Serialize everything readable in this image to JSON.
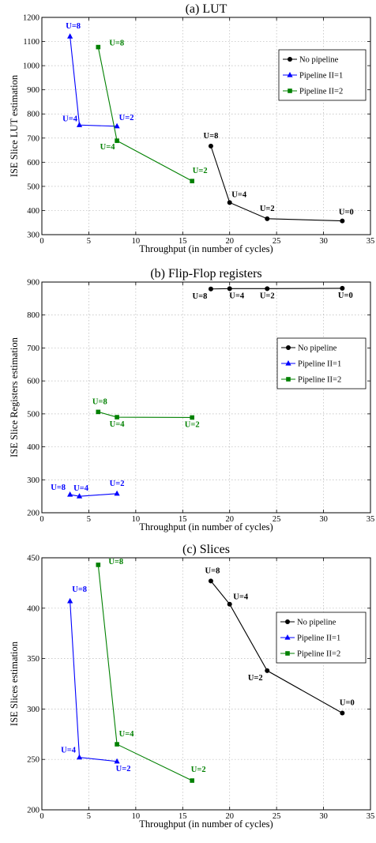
{
  "chart_data": [
    {
      "type": "line",
      "title": "(a) LUT",
      "xlabel": "Throughput (in number of cycles)",
      "ylabel": "ISE Slice LUT estimation",
      "xlim": [
        0,
        35
      ],
      "ylim": [
        300,
        1200
      ],
      "xticks": [
        0,
        5,
        10,
        15,
        20,
        25,
        30,
        35
      ],
      "yticks": [
        300,
        400,
        500,
        600,
        700,
        800,
        900,
        1000,
        1100,
        1200
      ],
      "grid": true,
      "legend_position": "top-right",
      "series": [
        {
          "name": "No pipeline",
          "color": "#000000",
          "marker": "circle",
          "x": [
            18,
            20,
            24,
            32
          ],
          "y": [
            667,
            433,
            366,
            357
          ],
          "labels": [
            "U=8",
            "U=4",
            "U=2",
            "U=0"
          ]
        },
        {
          "name": "Pipeline II=1",
          "color": "#0000ff",
          "marker": "triangle",
          "x": [
            3,
            4,
            8
          ],
          "y": [
            1121,
            754,
            749
          ],
          "labels": [
            "U=8",
            "U=4",
            "U=2"
          ]
        },
        {
          "name": "Pipeline II=2",
          "color": "#008000",
          "marker": "square",
          "x": [
            6,
            8,
            16
          ],
          "y": [
            1077,
            689,
            522
          ],
          "labels": [
            "U=8",
            "U=4",
            "U=2"
          ]
        }
      ]
    },
    {
      "type": "line",
      "title": "(b) Flip-Flop registers",
      "xlabel": "Throughput (in number of cycles)",
      "ylabel": "ISE Slice Registers estimation",
      "xlim": [
        0,
        35
      ],
      "ylim": [
        200,
        900
      ],
      "xticks": [
        0,
        5,
        10,
        15,
        20,
        25,
        30,
        35
      ],
      "yticks": [
        200,
        300,
        400,
        500,
        600,
        700,
        800,
        900
      ],
      "grid": true,
      "legend_position": "top-right",
      "series": [
        {
          "name": "No pipeline",
          "color": "#000000",
          "marker": "circle",
          "x": [
            18,
            20,
            24,
            32
          ],
          "y": [
            879,
            880,
            880,
            881
          ],
          "labels": [
            "U=8",
            "U=4",
            "U=2",
            "U=0"
          ]
        },
        {
          "name": "Pipeline II=1",
          "color": "#0000ff",
          "marker": "triangle",
          "x": [
            3,
            4,
            8
          ],
          "y": [
            255,
            250,
            258
          ],
          "labels": [
            "U=8",
            "U=4",
            "U=2"
          ]
        },
        {
          "name": "Pipeline II=2",
          "color": "#008000",
          "marker": "square",
          "x": [
            6,
            8,
            16
          ],
          "y": [
            506,
            490,
            489
          ],
          "labels": [
            "U=8",
            "U=4",
            "U=2"
          ]
        }
      ]
    },
    {
      "type": "line",
      "title": "(c) Slices",
      "xlabel": "Throughput (in number of cycles)",
      "ylabel": "ISE Slices estimation",
      "xlim": [
        0,
        35
      ],
      "ylim": [
        200,
        450
      ],
      "xticks": [
        0,
        5,
        10,
        15,
        20,
        25,
        30,
        35
      ],
      "yticks": [
        200,
        250,
        300,
        350,
        400,
        450
      ],
      "grid": true,
      "legend_position": "top-right",
      "series": [
        {
          "name": "No pipeline",
          "color": "#000000",
          "marker": "circle",
          "x": [
            18,
            20,
            24,
            32
          ],
          "y": [
            427,
            404,
            338,
            296
          ],
          "labels": [
            "U=8",
            "U=4",
            "U=2",
            "U=0"
          ]
        },
        {
          "name": "Pipeline II=1",
          "color": "#0000ff",
          "marker": "triangle",
          "x": [
            3,
            4,
            8
          ],
          "y": [
            407,
            252,
            248
          ],
          "labels": [
            "U=8",
            "U=4",
            "U=2"
          ]
        },
        {
          "name": "Pipeline II=2",
          "color": "#008000",
          "marker": "square",
          "x": [
            6,
            8,
            16
          ],
          "y": [
            443,
            265,
            229
          ],
          "labels": [
            "U=8",
            "U=4",
            "U=2"
          ]
        }
      ]
    }
  ]
}
